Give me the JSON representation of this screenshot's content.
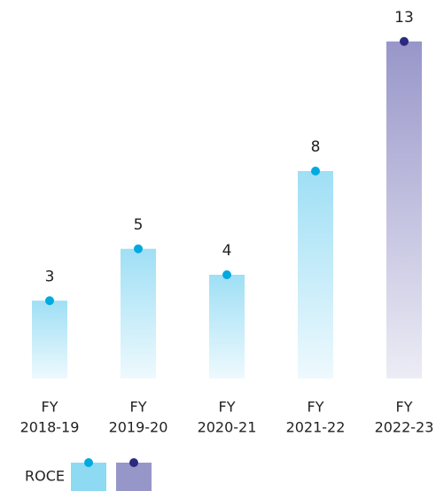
{
  "chart_data": {
    "type": "bar",
    "categories": [
      [
        "FY",
        "2018-19"
      ],
      [
        "FY",
        "2019-20"
      ],
      [
        "FY",
        "2020-21"
      ],
      [
        "FY",
        "2021-22"
      ],
      [
        "FY",
        "2022-23"
      ]
    ],
    "values": [
      3,
      5,
      4,
      8,
      13
    ],
    "colors": [
      "#9fdff5",
      "#9fdff5",
      "#9fdff5",
      "#9fdff5",
      "#9896c9"
    ],
    "dot_colors": [
      "#00a9e0",
      "#00a9e0",
      "#00a9e0",
      "#00a9e0",
      "#2b2a7d"
    ],
    "legend": {
      "label": "ROCE",
      "colors": [
        "#8fdaf3",
        "#9796c9"
      ],
      "dot_colors": [
        "#00a9e0",
        "#2b2a7d"
      ]
    }
  }
}
